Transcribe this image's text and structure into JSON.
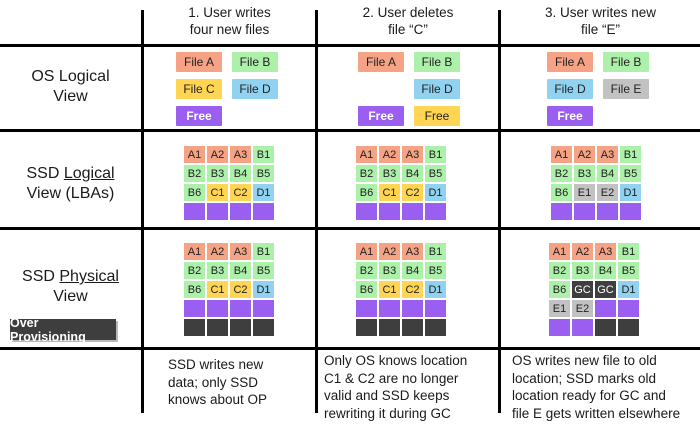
{
  "colors": {
    "file_a": "#F5A384",
    "file_b": "#ACF0AA",
    "file_c": "#FFD553",
    "file_d": "#90D2F0",
    "free": "#9A5FF0",
    "file_e": "#C2C2C2",
    "dark": "#3E3E3E",
    "line": "#000000"
  },
  "headers": [
    {
      "text": "1. User writes\nfour  new files"
    },
    {
      "text": "2. User deletes\nfile “C”"
    },
    {
      "text": "3. User writes new\nfile “E”"
    }
  ],
  "row_labels": {
    "os": {
      "line1": "OS Logical",
      "line2": "View"
    },
    "ssd_logical": {
      "prefix": "SSD ",
      "underlined": "Logical",
      "line2": "View (LBAs)"
    },
    "ssd_physical": {
      "prefix": "SSD ",
      "underlined": "Physical",
      "line2": "View"
    },
    "over_provisioning": "Over Provisioning"
  },
  "os_view": {
    "step1": [
      {
        "label": "File A",
        "color": "file_a"
      },
      {
        "label": "File B",
        "color": "file_b"
      },
      {
        "label": "File C",
        "color": "file_c"
      },
      {
        "label": "File D",
        "color": "file_d"
      },
      {
        "label": "Free",
        "color": "free",
        "tc": "#FFFFFF",
        "bold": true
      },
      null
    ],
    "step2": [
      {
        "label": "File A",
        "color": "file_a"
      },
      {
        "label": "File B",
        "color": "file_b"
      },
      null,
      {
        "label": "File D",
        "color": "file_d"
      },
      {
        "label": "Free",
        "color": "free",
        "tc": "#FFFFFF",
        "bold": true
      },
      {
        "label": "Free",
        "color": "file_c"
      }
    ],
    "step3": [
      {
        "label": "File A",
        "color": "file_a"
      },
      {
        "label": "File B",
        "color": "file_b"
      },
      {
        "label": "File D",
        "color": "file_d"
      },
      {
        "label": "File E",
        "color": "file_e"
      },
      {
        "label": "Free",
        "color": "free",
        "tc": "#FFFFFF",
        "bold": true
      },
      null
    ]
  },
  "ssd_logical": {
    "step1": [
      [
        {
          "label": "A1",
          "color": "file_a"
        },
        {
          "label": "A2",
          "color": "file_a"
        },
        {
          "label": "A3",
          "color": "file_a"
        },
        {
          "label": "B1",
          "color": "file_b"
        }
      ],
      [
        {
          "label": "B2",
          "color": "file_b"
        },
        {
          "label": "B3",
          "color": "file_b"
        },
        {
          "label": "B4",
          "color": "file_b"
        },
        {
          "label": "B5",
          "color": "file_b"
        }
      ],
      [
        {
          "label": "B6",
          "color": "file_b"
        },
        {
          "label": "C1",
          "color": "file_c"
        },
        {
          "label": "C2",
          "color": "file_c"
        },
        {
          "label": "D1",
          "color": "file_d"
        }
      ],
      [
        {
          "color": "free"
        },
        {
          "color": "free"
        },
        {
          "color": "free"
        },
        {
          "color": "free"
        }
      ]
    ],
    "step2": [
      [
        {
          "label": "A1",
          "color": "file_a"
        },
        {
          "label": "A2",
          "color": "file_a"
        },
        {
          "label": "A3",
          "color": "file_a"
        },
        {
          "label": "B1",
          "color": "file_b"
        }
      ],
      [
        {
          "label": "B2",
          "color": "file_b"
        },
        {
          "label": "B3",
          "color": "file_b"
        },
        {
          "label": "B4",
          "color": "file_b"
        },
        {
          "label": "B5",
          "color": "file_b"
        }
      ],
      [
        {
          "label": "B6",
          "color": "file_b"
        },
        {
          "label": "C1",
          "color": "file_c"
        },
        {
          "label": "C2",
          "color": "file_c"
        },
        {
          "label": "D1",
          "color": "file_d"
        }
      ],
      [
        {
          "color": "free"
        },
        {
          "color": "free"
        },
        {
          "color": "free"
        },
        {
          "color": "free"
        }
      ]
    ],
    "step3": [
      [
        {
          "label": "A1",
          "color": "file_a"
        },
        {
          "label": "A2",
          "color": "file_a"
        },
        {
          "label": "A3",
          "color": "file_a"
        },
        {
          "label": "B1",
          "color": "file_b"
        }
      ],
      [
        {
          "label": "B2",
          "color": "file_b"
        },
        {
          "label": "B3",
          "color": "file_b"
        },
        {
          "label": "B4",
          "color": "file_b"
        },
        {
          "label": "B5",
          "color": "file_b"
        }
      ],
      [
        {
          "label": "B6",
          "color": "file_b"
        },
        {
          "label": "E1",
          "color": "file_e"
        },
        {
          "label": "E2",
          "color": "file_e"
        },
        {
          "label": "D1",
          "color": "file_d"
        }
      ],
      [
        {
          "color": "free"
        },
        {
          "color": "free"
        },
        {
          "color": "free"
        },
        {
          "color": "free"
        }
      ]
    ]
  },
  "ssd_physical": {
    "step1": [
      [
        {
          "label": "A1",
          "color": "file_a"
        },
        {
          "label": "A2",
          "color": "file_a"
        },
        {
          "label": "A3",
          "color": "file_a"
        },
        {
          "label": "B1",
          "color": "file_b"
        }
      ],
      [
        {
          "label": "B2",
          "color": "file_b"
        },
        {
          "label": "B3",
          "color": "file_b"
        },
        {
          "label": "B4",
          "color": "file_b"
        },
        {
          "label": "B5",
          "color": "file_b"
        }
      ],
      [
        {
          "label": "B6",
          "color": "file_b"
        },
        {
          "label": "C1",
          "color": "file_c"
        },
        {
          "label": "C2",
          "color": "file_c"
        },
        {
          "label": "D1",
          "color": "file_d"
        }
      ],
      [
        {
          "color": "free"
        },
        {
          "color": "free"
        },
        {
          "color": "free"
        },
        {
          "color": "free"
        }
      ],
      [
        {
          "color": "dark"
        },
        {
          "color": "dark"
        },
        {
          "color": "dark"
        },
        {
          "color": "dark"
        }
      ]
    ],
    "step2": [
      [
        {
          "label": "A1",
          "color": "file_a"
        },
        {
          "label": "A2",
          "color": "file_a"
        },
        {
          "label": "A3",
          "color": "file_a"
        },
        {
          "label": "B1",
          "color": "file_b"
        }
      ],
      [
        {
          "label": "B2",
          "color": "file_b"
        },
        {
          "label": "B3",
          "color": "file_b"
        },
        {
          "label": "B4",
          "color": "file_b"
        },
        {
          "label": "B5",
          "color": "file_b"
        }
      ],
      [
        {
          "label": "B6",
          "color": "file_b"
        },
        {
          "label": "C1",
          "color": "file_c"
        },
        {
          "label": "C2",
          "color": "file_c"
        },
        {
          "label": "D1",
          "color": "file_d"
        }
      ],
      [
        {
          "color": "free"
        },
        {
          "color": "free"
        },
        {
          "color": "free"
        },
        {
          "color": "free"
        }
      ],
      [
        {
          "color": "dark"
        },
        {
          "color": "dark"
        },
        {
          "color": "dark"
        },
        {
          "color": "dark"
        }
      ]
    ],
    "step3": [
      [
        {
          "label": "A1",
          "color": "file_a"
        },
        {
          "label": "A2",
          "color": "file_a"
        },
        {
          "label": "A3",
          "color": "file_a"
        },
        {
          "label": "B1",
          "color": "file_b"
        }
      ],
      [
        {
          "label": "B2",
          "color": "file_b"
        },
        {
          "label": "B3",
          "color": "file_b"
        },
        {
          "label": "B4",
          "color": "file_b"
        },
        {
          "label": "B5",
          "color": "file_b"
        }
      ],
      [
        {
          "label": "B6",
          "color": "file_b"
        },
        {
          "label": "GC",
          "color": "dark",
          "tc": "#FFFFFF"
        },
        {
          "label": "GC",
          "color": "dark",
          "tc": "#FFFFFF"
        },
        {
          "label": "D1",
          "color": "file_d"
        }
      ],
      [
        {
          "label": "E1",
          "color": "file_e"
        },
        {
          "label": "E2",
          "color": "file_e"
        },
        {
          "color": "free"
        },
        {
          "color": "free"
        }
      ],
      [
        {
          "color": "free"
        },
        {
          "color": "free"
        },
        {
          "color": "dark"
        },
        {
          "color": "dark"
        }
      ]
    ]
  },
  "captions": [
    "SSD writes new\ndata; only SSD\nknows about OP",
    "Only OS knows location\nC1 & C2 are no longer\nvalid and SSD keeps\nrewriting it during GC",
    "OS writes new file to old\nlocation; SSD marks old\nlocation ready for GC and\nfile E gets written elsewhere"
  ]
}
